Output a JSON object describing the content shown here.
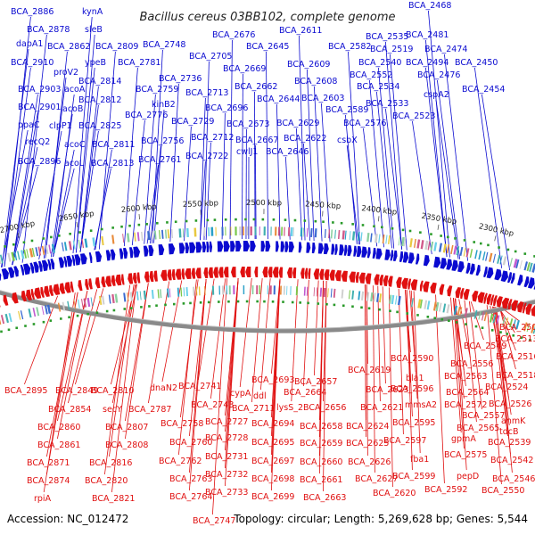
{
  "title": "Bacillus cereus 03BB102, complete genome",
  "footer": {
    "accession": "Accession: NC_012472",
    "summary": "Topology: circular; Length: 5,269,628 bp; Genes: 5,544"
  },
  "colors": {
    "forward": "#0a0ad0",
    "reverse": "#e01010",
    "backbone": "#8a8a8a",
    "marker": "#2a9a2a"
  },
  "ticks": [
    "2700 kbp",
    "2650 kbp",
    "2600 kbp",
    "2550 kbp",
    "2500 kbp",
    "2450 kbp",
    "2400 kbp",
    "2350 kbp",
    "2300 kbp"
  ],
  "forward_labels": [
    [
      "BCA_2886",
      12,
      16
    ],
    [
      "kynA",
      92,
      16
    ],
    [
      "BCA_2878",
      30,
      36
    ],
    [
      "sleB",
      95,
      36
    ],
    [
      "dapA1",
      18,
      52
    ],
    [
      "BCA_2862",
      53,
      55
    ],
    [
      "BCA_2809",
      107,
      55
    ],
    [
      "BCA_2748",
      160,
      53
    ],
    [
      "BCA_2910",
      12,
      73
    ],
    [
      "proV2",
      60,
      84
    ],
    [
      "ypeB",
      95,
      73
    ],
    [
      "BCA_2781",
      132,
      73
    ],
    [
      "BCA_2814",
      88,
      94
    ],
    [
      "BCA_2759",
      152,
      103
    ],
    [
      "BCA_2736",
      178,
      91
    ],
    [
      "BCA_2705",
      212,
      66
    ],
    [
      "BCA_2903",
      20,
      103
    ],
    [
      "acoA",
      72,
      103
    ],
    [
      "BCA_2812",
      88,
      115
    ],
    [
      "kinB2",
      170,
      120
    ],
    [
      "BCA_2713",
      208,
      107
    ],
    [
      "BCA_2676",
      238,
      42
    ],
    [
      "BCA_2669",
      250,
      80
    ],
    [
      "BCA_2645",
      276,
      55
    ],
    [
      "BCA_2611",
      313,
      37
    ],
    [
      "BCA_2662",
      263,
      100
    ],
    [
      "BCA_2609",
      322,
      75
    ],
    [
      "BCA_2608",
      330,
      94
    ],
    [
      "BCA_2582",
      368,
      55
    ],
    [
      "BCA_2535",
      410,
      44
    ],
    [
      "BCA_2519",
      415,
      58
    ],
    [
      "BCA_2540",
      402,
      73
    ],
    [
      "BCA_2552",
      392,
      87
    ],
    [
      "BCA_2534",
      400,
      100
    ],
    [
      "BCA_2533",
      410,
      119
    ],
    [
      "BCA_2481",
      455,
      42
    ],
    [
      "BCA_2474",
      476,
      58
    ],
    [
      "BCA_2494",
      455,
      73
    ],
    [
      "BCA_2450",
      510,
      73
    ],
    [
      "BCA_2476",
      468,
      87
    ],
    [
      "BCA_2454",
      518,
      103
    ],
    [
      "BCA_2468",
      458,
      9
    ],
    [
      "BCA_2901",
      20,
      123
    ],
    [
      "acoB",
      70,
      125
    ],
    [
      "ppaC",
      20,
      143
    ],
    [
      "clpP1",
      55,
      144
    ],
    [
      "BCA_2825",
      88,
      144
    ],
    [
      "BCA_2776",
      140,
      132
    ],
    [
      "BCA_2696",
      230,
      124
    ],
    [
      "BCA_2644",
      288,
      114
    ],
    [
      "BCA_2603",
      338,
      113
    ],
    [
      "BCA_2589",
      365,
      126
    ],
    [
      "BCA_2729",
      192,
      139
    ],
    [
      "BCA_2673",
      254,
      142
    ],
    [
      "BCA_2629",
      310,
      141
    ],
    [
      "BCA_2576",
      385,
      141
    ],
    [
      "BCA_2523",
      440,
      133
    ],
    [
      "cspA2",
      475,
      109
    ],
    [
      "recQ2",
      28,
      162
    ],
    [
      "acoC",
      72,
      165
    ],
    [
      "BCA_2811",
      103,
      165
    ],
    [
      "BCA_2756",
      158,
      161
    ],
    [
      "BCA_2712",
      214,
      157
    ],
    [
      "BCA_2667",
      264,
      160
    ],
    [
      "BCA_2622",
      318,
      158
    ],
    [
      "csbX",
      378,
      160
    ],
    [
      "cwlJ1",
      265,
      173
    ],
    [
      "BCA_2646",
      298,
      173
    ],
    [
      "BCA_2896",
      20,
      184
    ],
    [
      "acoL",
      72,
      186
    ],
    [
      "BCA_2813",
      102,
      186
    ],
    [
      "BCA_2761",
      155,
      182
    ],
    [
      "BCA_2722",
      208,
      178
    ]
  ],
  "reverse_labels": [
    [
      "BCA_2895",
      5,
      441
    ],
    [
      "BCA_2849",
      62,
      441
    ],
    [
      "BCA_2854",
      54,
      462
    ],
    [
      "BCA_2860",
      42,
      482
    ],
    [
      "BCA_2861",
      42,
      502
    ],
    [
      "BCA_2871",
      30,
      522
    ],
    [
      "BCA_2874",
      30,
      542
    ],
    [
      "rpiA",
      38,
      562
    ],
    [
      "secY",
      115,
      462
    ],
    [
      "BCA_2810",
      102,
      441
    ],
    [
      "BCA_2807",
      118,
      482
    ],
    [
      "BCA_2808",
      118,
      502
    ],
    [
      "BCA_2816",
      100,
      522
    ],
    [
      "BCA_2820",
      95,
      542
    ],
    [
      "BCA_2821",
      103,
      562
    ],
    [
      "BCA_2787",
      144,
      462
    ],
    [
      "dnaN2",
      168,
      438
    ],
    [
      "BCA_2741",
      200,
      436
    ],
    [
      "BCA_2743",
      214,
      457
    ],
    [
      "BCA_2758",
      180,
      478
    ],
    [
      "BCA_2760",
      190,
      499
    ],
    [
      "BCA_2762",
      178,
      520
    ],
    [
      "BCA_2763",
      190,
      540
    ],
    [
      "BCA_2764",
      190,
      560
    ],
    [
      "BCA_2747",
      216,
      587
    ],
    [
      "BCA_2727",
      230,
      476
    ],
    [
      "BCA_2728",
      230,
      494
    ],
    [
      "BCA_2731",
      230,
      515
    ],
    [
      "BCA_2732",
      230,
      535
    ],
    [
      "BCA_2733",
      230,
      555
    ],
    [
      "cypA",
      258,
      444
    ],
    [
      "BCA_2711",
      260,
      461
    ],
    [
      "ddl",
      284,
      447
    ],
    [
      "BCA_2693",
      282,
      429
    ],
    [
      "BCA_2694",
      282,
      478
    ],
    [
      "BCA_2695",
      282,
      499
    ],
    [
      "BCA_2697",
      282,
      520
    ],
    [
      "BCA_2698",
      282,
      540
    ],
    [
      "BCA_2699",
      282,
      560
    ],
    [
      "lysS_2",
      310,
      460
    ],
    [
      "BCA_2657",
      330,
      431
    ],
    [
      "BCA_2664",
      318,
      443
    ],
    [
      "BCA_2656",
      340,
      460
    ],
    [
      "BCA_2658",
      336,
      481
    ],
    [
      "BCA_2659",
      336,
      500
    ],
    [
      "BCA_2660",
      336,
      521
    ],
    [
      "BCA_2661",
      336,
      541
    ],
    [
      "BCA_2663",
      340,
      561
    ],
    [
      "BCA_2619",
      390,
      418
    ],
    [
      "BCA_2623",
      410,
      440
    ],
    [
      "BCA_2621",
      404,
      460
    ],
    [
      "BCA_2624",
      388,
      481
    ],
    [
      "BCA_2625",
      388,
      500
    ],
    [
      "BCA_2626",
      390,
      521
    ],
    [
      "BCA_2627",
      398,
      540
    ],
    [
      "BCA_2620",
      418,
      556
    ],
    [
      "BCA_2590",
      438,
      405
    ],
    [
      "bla1",
      455,
      427
    ],
    [
      "BCA_2596",
      438,
      439
    ],
    [
      "mmsA2",
      454,
      457
    ],
    [
      "BCA_2595",
      440,
      477
    ],
    [
      "BCA_2597",
      430,
      497
    ],
    [
      "fba1",
      460,
      518
    ],
    [
      "BCA_2599",
      440,
      537
    ],
    [
      "BCA_2592",
      476,
      552
    ],
    [
      "BCA_2549",
      520,
      391
    ],
    [
      "BCA_2556",
      505,
      411
    ],
    [
      "BCA_2563",
      498,
      425
    ],
    [
      "BCA_2564",
      500,
      443
    ],
    [
      "BCA_2572",
      498,
      457
    ],
    [
      "BCA_2557",
      518,
      469
    ],
    [
      "BCA_2565",
      512,
      483
    ],
    [
      "gpmA",
      506,
      495
    ],
    [
      "BCA_2575",
      498,
      513
    ],
    [
      "pepD",
      512,
      537
    ],
    [
      "BCA_2507",
      560,
      370
    ],
    [
      "BCA_2513",
      555,
      383
    ],
    [
      "BCA_2516",
      556,
      403
    ],
    [
      "BCA_2518",
      556,
      424
    ],
    [
      "BCA_2524",
      544,
      437
    ],
    [
      "BCA_2526",
      548,
      456
    ],
    [
      "anmK",
      562,
      475
    ],
    [
      "tdcB",
      560,
      487
    ],
    [
      "BCA_2539",
      547,
      499
    ],
    [
      "BCA_2542",
      550,
      519
    ],
    [
      "BCA_2546",
      552,
      540
    ],
    [
      "BCA_2550",
      540,
      553
    ]
  ]
}
